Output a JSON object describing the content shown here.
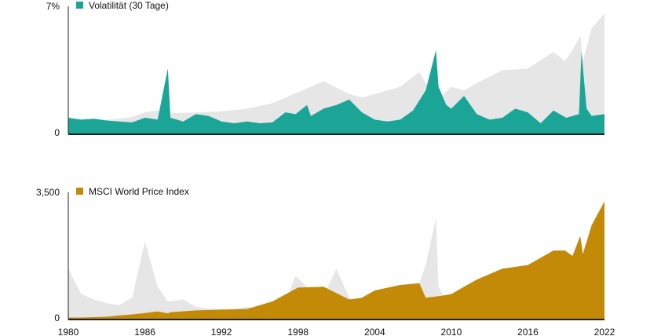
{
  "chart_data": [
    {
      "type": "area",
      "legend": "Volatilität (30 Tage)",
      "ytick_labels": [
        "7%",
        "0"
      ],
      "ylim": [
        0,
        7
      ],
      "xlim": [
        1980,
        2022
      ],
      "colors": {
        "series": "#1aa596",
        "shadow": "#e6e6e6"
      },
      "series": [
        {
          "name": "Volatilität (30 Tage)",
          "x": [
            1980,
            1981,
            1982,
            1983,
            1984,
            1985,
            1986,
            1987,
            1987.8,
            1988,
            1989,
            1990,
            1991,
            1992,
            1993,
            1994,
            1995,
            1996,
            1997,
            1997.8,
            1998.7,
            1999,
            2000,
            2001,
            2002,
            2003,
            2004,
            2005,
            2006,
            2007,
            2008,
            2008.8,
            2009,
            2009.6,
            2010,
            2011,
            2011.7,
            2012,
            2013,
            2014,
            2015,
            2016,
            2017,
            2018,
            2019,
            2020,
            2020.2,
            2020.6,
            2021,
            2022
          ],
          "values": [
            0.9,
            0.8,
            0.85,
            0.75,
            0.7,
            0.65,
            0.9,
            0.8,
            3.6,
            0.9,
            0.7,
            1.1,
            1.0,
            0.7,
            0.6,
            0.7,
            0.6,
            0.65,
            1.2,
            1.1,
            1.6,
            1.0,
            1.4,
            1.6,
            1.9,
            1.2,
            0.8,
            0.7,
            0.8,
            1.3,
            2.4,
            4.6,
            2.6,
            1.6,
            1.4,
            2.1,
            1.4,
            1.1,
            0.8,
            0.9,
            1.4,
            1.2,
            0.6,
            1.3,
            0.9,
            1.1,
            4.5,
            1.4,
            1.0,
            1.1
          ]
        }
      ],
      "shadow_series": {
        "name": "MSCI World Price Index",
        "x": [
          1980,
          1981,
          1982,
          1983,
          1984,
          1985,
          1986,
          1987,
          1987.8,
          1988,
          1990,
          1992,
          1994,
          1996,
          1998,
          2000,
          2002,
          2003,
          2004,
          2006,
          2007.5,
          2008,
          2009.2,
          2010,
          2011,
          2012,
          2014,
          2016,
          2018,
          2018.9,
          2019.5,
          2020.1,
          2020.3,
          2021,
          2022
        ],
        "values": [
          0.7,
          0.65,
          0.68,
          0.8,
          0.85,
          0.95,
          1.2,
          1.3,
          1.05,
          1.15,
          1.2,
          1.25,
          1.4,
          1.7,
          2.3,
          2.9,
          2.2,
          2.0,
          2.2,
          2.6,
          3.4,
          2.8,
          2.05,
          2.6,
          2.4,
          2.8,
          3.5,
          3.6,
          4.5,
          4.0,
          4.6,
          5.4,
          4.0,
          5.8,
          6.6
        ]
      }
    },
    {
      "type": "area",
      "legend": "MSCI World Price Index",
      "ytick_labels": [
        "3,500",
        "0"
      ],
      "ylim": [
        0,
        3500
      ],
      "xlim": [
        1980,
        2022
      ],
      "xtick_labels": [
        "1980",
        "1986",
        "1992",
        "1998",
        "2004",
        "2010",
        "2016",
        "2022"
      ],
      "colors": {
        "series": "#c28a06",
        "shadow": "#e6e6e6"
      },
      "series": [
        {
          "name": "MSCI World Price Index",
          "x": [
            1980,
            1981,
            1982,
            1983,
            1984,
            1985,
            1986,
            1987,
            1987.8,
            1988,
            1990,
            1992,
            1994,
            1996,
            1998,
            2000,
            2002,
            2003,
            2004,
            2006,
            2007.5,
            2008,
            2009.2,
            2010,
            2011,
            2012,
            2014,
            2016,
            2018,
            2018.9,
            2019.5,
            2020.1,
            2020.3,
            2021,
            2022
          ],
          "values": [
            55,
            55,
            65,
            75,
            110,
            140,
            180,
            220,
            170,
            200,
            250,
            270,
            290,
            500,
            880,
            900,
            550,
            600,
            800,
            950,
            1000,
            600,
            650,
            700,
            900,
            1100,
            1400,
            1500,
            1900,
            1900,
            1750,
            2300,
            1800,
            2600,
            3250
          ]
        }
      ],
      "shadow_series": {
        "name": "Volatilität (30 Tage)",
        "x": [
          1980,
          1981,
          1982,
          1983,
          1984,
          1985,
          1986,
          1987,
          1987.8,
          1988,
          1989,
          1990,
          1991,
          1992,
          1993,
          1994,
          1995,
          1996,
          1997,
          1997.8,
          1998.7,
          1999,
          2000,
          2001,
          2002,
          2003,
          2004,
          2005,
          2006,
          2007,
          2008,
          2008.8,
          2009,
          2009.6,
          2010,
          2011,
          2011.7,
          2012,
          2013,
          2014,
          2015,
          2016,
          2017,
          2018,
          2019,
          2020,
          2020.2,
          2020.6,
          2021,
          2022
        ],
        "values": [
          1400,
          700,
          550,
          450,
          400,
          600,
          2150,
          900,
          500,
          500,
          550,
          350,
          300,
          300,
          300,
          350,
          300,
          400,
          500,
          1200,
          900,
          700,
          650,
          1400,
          600,
          400,
          400,
          350,
          350,
          500,
          1500,
          2800,
          900,
          500,
          500,
          900,
          700,
          600,
          400,
          450,
          700,
          600,
          300,
          500,
          500,
          550,
          2200,
          800,
          600,
          700
        ]
      }
    }
  ]
}
